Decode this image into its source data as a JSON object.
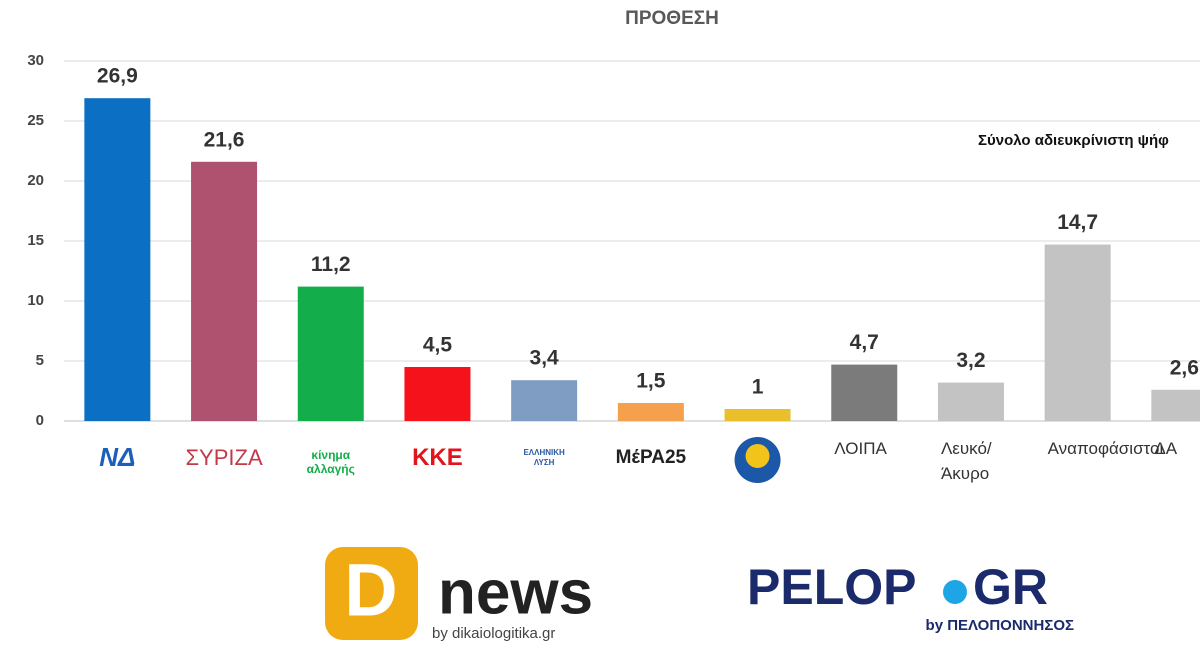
{
  "chart_data": {
    "type": "bar",
    "title": "ΠΡΟΘΕΣΗ",
    "annotation": "Σύνολο αδιευκρίνιστη ψήφ",
    "categories": [
      "ΝΔ",
      "ΣΥΡΙΖΑ",
      "κίνημα αλλαγής",
      "ΚΚΕ",
      "ΕΛΛΗΝΙΚΗ ΛΥΣΗ",
      "ΜέΡΑ25",
      null,
      "ΛΟΙΠΑ",
      "Λευκό/ Άκυρο",
      "Αναποφάσιστοι",
      "ΔΑ"
    ],
    "values": [
      26.9,
      21.6,
      11.2,
      4.5,
      3.4,
      1.5,
      1,
      4.7,
      3.2,
      14.7,
      2.6
    ],
    "value_labels": [
      "26,9",
      "21,6",
      "11,2",
      "4,5",
      "3,4",
      "1,5",
      "1",
      "4,7",
      "3,2",
      "14,7",
      "2,6"
    ],
    "colors": [
      "#0b6fc3",
      "#ae5270",
      "#14ad4b",
      "#f5121a",
      "#7f9dc3",
      "#f4a04c",
      "#e9bf2b",
      "#7b7b7b",
      "#c3c3c3",
      "#c3c3c3",
      "#c3c3c3"
    ],
    "ylim": [
      0,
      30
    ],
    "yticks": [
      0,
      5,
      10,
      15,
      20,
      25,
      30
    ],
    "grid": true
  },
  "logos": {
    "dnews": {
      "mark": "D",
      "name": "news",
      "by": "by dikaiologitika.gr"
    },
    "pelop": {
      "name1": "PELOP",
      "name2": "GR",
      "by": "by ΠΕΛΟΠΟΝΝΗΣΟΣ"
    }
  }
}
